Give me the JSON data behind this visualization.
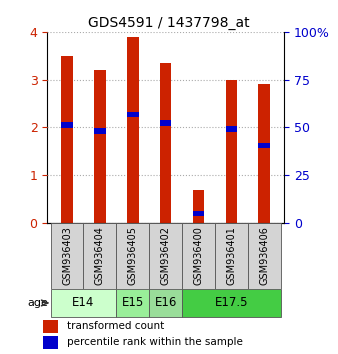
{
  "title": "GDS4591 / 1437798_at",
  "samples": [
    "GSM936403",
    "GSM936404",
    "GSM936405",
    "GSM936402",
    "GSM936400",
    "GSM936401",
    "GSM936406"
  ],
  "transformed_count": [
    3.5,
    3.2,
    3.9,
    3.35,
    0.7,
    3.0,
    2.9
  ],
  "percentile_rank": [
    2.05,
    1.93,
    2.27,
    2.1,
    0.2,
    1.97,
    1.62
  ],
  "age_groups": [
    {
      "label": "E14",
      "samples": [
        0,
        1
      ],
      "color": "#ccffcc"
    },
    {
      "label": "E15",
      "samples": [
        2
      ],
      "color": "#99ee99"
    },
    {
      "label": "E16",
      "samples": [
        3
      ],
      "color": "#99dd99"
    },
    {
      "label": "E17.5",
      "samples": [
        4,
        5,
        6
      ],
      "color": "#44cc44"
    }
  ],
  "bar_color": "#cc2200",
  "percentile_color": "#0000cc",
  "ylim_left": [
    0,
    4
  ],
  "ylim_right": [
    0,
    100
  ],
  "yticks_left": [
    0,
    1,
    2,
    3,
    4
  ],
  "yticks_right": [
    0,
    25,
    50,
    75,
    100
  ],
  "bar_width": 0.35,
  "blue_bar_height": 0.12,
  "grid_color": "#aaaaaa"
}
